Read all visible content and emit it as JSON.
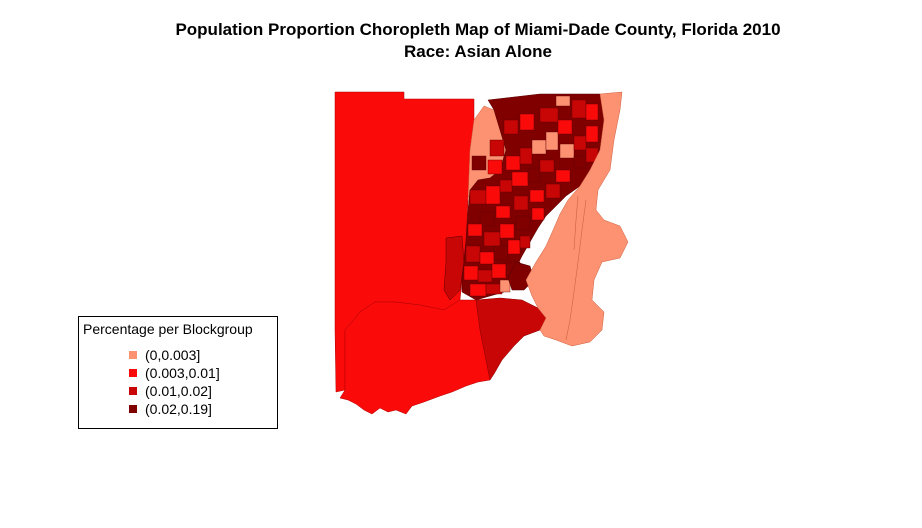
{
  "title": {
    "line1": "Population Proportion Choropleth Map of Miami-Dade County, Florida 2010",
    "line2": "Race: Asian Alone"
  },
  "legend": {
    "title": "Percentage per Blockgroup",
    "items": [
      {
        "label": "(0,0.003]",
        "color": "#fc9272"
      },
      {
        "label": "(0.003,0.01]",
        "color": "#fb0a0a"
      },
      {
        "label": "(0.01,0.02]",
        "color": "#c90606"
      },
      {
        "label": "(0.02,0.19]",
        "color": "#800000"
      }
    ]
  },
  "colors": {
    "class1": "#fc9272",
    "class2": "#fb0a0a",
    "class3": "#c90606",
    "class4": "#800000",
    "border": "#8b3a3a"
  }
}
